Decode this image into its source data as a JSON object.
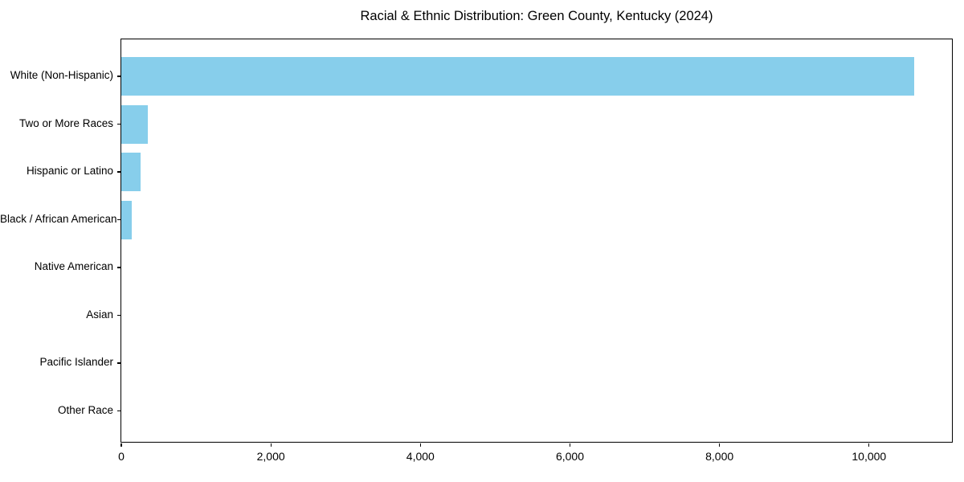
{
  "chart_data": {
    "type": "bar",
    "orientation": "horizontal",
    "title": "Racial & Ethnic Distribution: Green County, Kentucky (2024)",
    "categories": [
      "White (Non-Hispanic)",
      "Two or More Races",
      "Hispanic or Latino",
      "Black / African American",
      "Native American",
      "Asian",
      "Pacific Islander",
      "Other Race"
    ],
    "values": [
      10600,
      350,
      260,
      140,
      0,
      0,
      0,
      0
    ],
    "bar_color": "#87CEEB",
    "xlabel": "",
    "ylabel": "",
    "xlim": [
      0,
      11130
    ],
    "x_ticks": [
      0,
      2000,
      4000,
      6000,
      8000,
      10000
    ],
    "x_tick_labels": [
      "0",
      "2,000",
      "4,000",
      "6,000",
      "8,000",
      "10,000"
    ],
    "grid": false,
    "legend": null,
    "background_color": "#ffffff",
    "spine_color": "#000000"
  }
}
